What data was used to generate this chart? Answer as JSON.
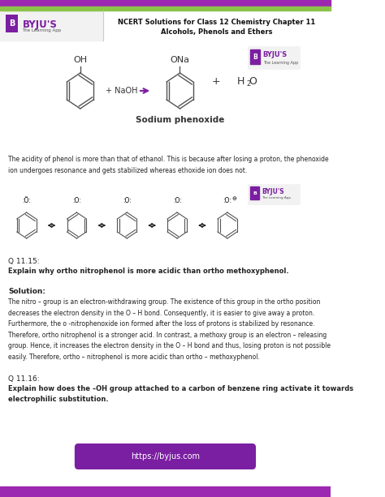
{
  "header_title_line1": "NCERT Solutions for Class 12 Chemistry Chapter 11",
  "header_title_line2": "Alcohols, Phenols and Ethers",
  "footer_bg": "#7b1fa2",
  "footer_text": "https://byjus.com",
  "page_bg": "#ffffff",
  "body_text_color": "#222222",
  "purple": "#7b1fa2",
  "green_bar": "#8bc34a",
  "top_purple_bar": "#6a1b9a",
  "q1115_label": "Q 11.15:",
  "q1115_question": "Explain why ortho nitrophenol is more acidic than ortho methoxyphenol.",
  "solution_label": "Solution:",
  "solution_text": "The nitro – group is an electron-withdrawing group. The existence of this group in the ortho position\ndecreases the electron density in the O – H bond. Consequently, it is easier to give away a proton.\nFurthermore, the o -nitrophenoxide ion formed after the loss of protons is stabilized by resonance.\nTherefore, ortho nitrophenol is a stronger acid. In contrast, a methoxy group is an electron – releasing\ngroup. Hence, it increases the electron density in the O – H bond and thus, losing proton is not possible\neasily. Therefore, ortho – nitrophenol is more acidic than ortho – methoxyphenol.",
  "q1116_label": "Q 11.16:",
  "q1116_question": "Explain how does the –OH group attached to a carbon of benzene ring activate it towards\nelectrophilic substitution.",
  "acidity_text": "The acidity of phenol is more than that of ethanol. This is because after losing a proton, the phenoxide\nion undergoes resonance and gets stabilized whereas ethoxide ion does not."
}
